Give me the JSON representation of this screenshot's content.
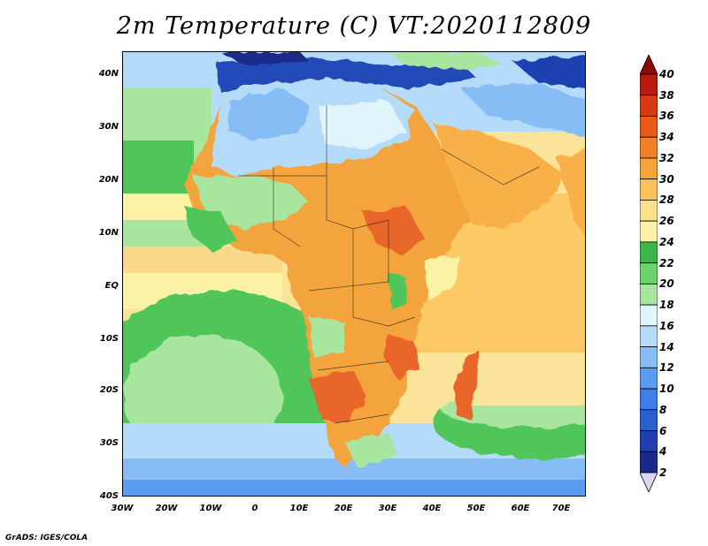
{
  "title": "2m Temperature (C) VT:2020112809",
  "footer": "GrADS: IGES/COLA",
  "axes": {
    "y_labels": [
      "40N",
      "30N",
      "20N",
      "10N",
      "EQ",
      "10S",
      "20S",
      "30S",
      "40S"
    ],
    "x_labels": [
      "30W",
      "20W",
      "10W",
      "0",
      "10E",
      "20E",
      "30E",
      "40E",
      "50E",
      "60E",
      "70E"
    ]
  },
  "colorbar": {
    "levels": [
      "2",
      "4",
      "6",
      "8",
      "10",
      "12",
      "14",
      "16",
      "18",
      "20",
      "22",
      "24",
      "26",
      "28",
      "30",
      "32",
      "34",
      "36",
      "38",
      "40"
    ],
    "colors": [
      "#e0d4f5",
      "#1a2a8a",
      "#1f3fb0",
      "#2a5fd0",
      "#3d7ee8",
      "#5a9cf0",
      "#86bdf5",
      "#b4dbfa",
      "#e0f4fb",
      "#a8e6a0",
      "#6cd36c",
      "#3ab84a",
      "#fbf2a6",
      "#fde08a",
      "#fbc45a",
      "#f8a23a",
      "#f28026",
      "#ea5a1a",
      "#d83a14",
      "#b71a0e",
      "#8a0a06"
    ]
  },
  "colors": {
    "ocean_warm": "#fbd98a",
    "ocean_mid": "#fbf2a6",
    "ocean_cool_green": "#4fc55a",
    "ocean_cold": "#9fd3f5",
    "land_hot": "#f4a43e",
    "land_very_hot": "#e9662a",
    "land_mild": "#a8e6a0",
    "mediterranean": "#2448b8"
  }
}
